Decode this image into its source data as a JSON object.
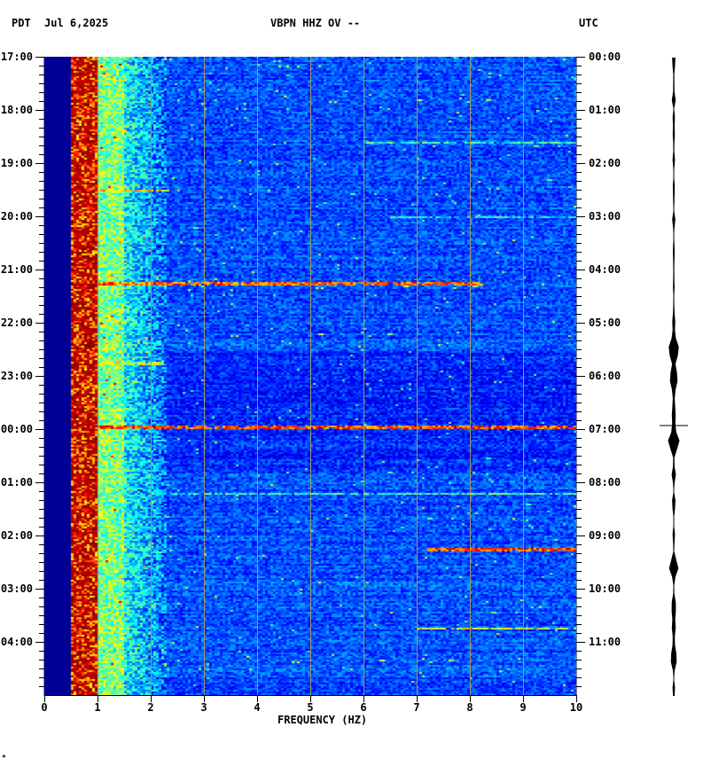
{
  "header": {
    "left_tz": "PDT",
    "date": "Jul 6,2025",
    "station": "VBPN HHZ OV --",
    "right_tz": "UTC"
  },
  "footer_mark": "*",
  "chart_data": {
    "type": "heatmap",
    "title": "VBPN HHZ OV --",
    "xlabel": "FREQUENCY (HZ)",
    "xlim": [
      0,
      10
    ],
    "x_ticks": [
      "0",
      "1",
      "2",
      "3",
      "4",
      "5",
      "6",
      "7",
      "8",
      "9",
      "10"
    ],
    "ylabel_left": "PDT",
    "ylabel_right": "UTC",
    "y_ticks_left": [
      "17:00",
      "18:00",
      "19:00",
      "20:00",
      "21:00",
      "22:00",
      "23:00",
      "00:00",
      "01:00",
      "02:00",
      "03:00",
      "04:00"
    ],
    "y_ticks_right": [
      "00:00",
      "01:00",
      "02:00",
      "03:00",
      "04:00",
      "05:00",
      "06:00",
      "07:00",
      "08:00",
      "09:00",
      "10:00",
      "11:00"
    ],
    "duration_hours": 12,
    "minor_tick_minutes": 10,
    "grid": true,
    "colormap": [
      "#000090",
      "#0000ff",
      "#0080ff",
      "#00ffff",
      "#80ff80",
      "#ffff00",
      "#ff8000",
      "#ff0000",
      "#800000"
    ],
    "band_profile": [
      {
        "fmin": 0.0,
        "fmax": 0.5,
        "level": 0.0
      },
      {
        "fmin": 0.5,
        "fmax": 1.0,
        "level": 0.85
      },
      {
        "fmin": 1.0,
        "fmax": 1.5,
        "level": 0.5
      },
      {
        "fmin": 1.5,
        "fmax": 2.3,
        "level": 0.38
      },
      {
        "fmin": 2.3,
        "fmax": 10.0,
        "level": 0.2
      }
    ],
    "events": [
      {
        "time_hours": 2.5,
        "fmin": 0.5,
        "fmax": 2.5,
        "level": 0.8
      },
      {
        "time_hours": 4.25,
        "fmin": 0.5,
        "fmax": 8.2,
        "level": 0.9
      },
      {
        "time_hours": 5.75,
        "fmin": 0.5,
        "fmax": 2.2,
        "level": 0.7
      },
      {
        "time_hours": 6.95,
        "fmin": 0.5,
        "fmax": 10.0,
        "level": 0.95
      },
      {
        "time_hours": 8.2,
        "fmin": 2.0,
        "fmax": 10.0,
        "level": 0.55
      },
      {
        "time_hours": 9.25,
        "fmin": 7.2,
        "fmax": 10.0,
        "level": 0.92
      },
      {
        "time_hours": 10.73,
        "fmin": 7.0,
        "fmax": 10.0,
        "level": 0.72
      },
      {
        "time_hours": 1.6,
        "fmin": 6.0,
        "fmax": 10.0,
        "level": 0.55
      },
      {
        "time_hours": 3.0,
        "fmin": 6.5,
        "fmax": 10.0,
        "level": 0.5
      }
    ],
    "seismogram_envelope": [
      0.3,
      0.15,
      0.1,
      0.2,
      0.1,
      0.25,
      0.1,
      0.3,
      0.1,
      0.15,
      0.2,
      0.1,
      0.15,
      0.1,
      0.1,
      0.15,
      0.1,
      0.15,
      0.1,
      0.2,
      0.1,
      0.1,
      0.15,
      0.1,
      0.1,
      0.2,
      0.1,
      0.1,
      0.1,
      0.15,
      0.1,
      0.2,
      0.35,
      0.5,
      0.6,
      0.65,
      0.6,
      0.55,
      0.45,
      0.4,
      0.3,
      0.2,
      0.25,
      0.45,
      0.6,
      0.7,
      0.5,
      0.2,
      0.15,
      0.25,
      0.15,
      0.1,
      0.25,
      0.15,
      0.1,
      0.1,
      0.15,
      0.1,
      0.15,
      0.5,
      0.55,
      0.3,
      0.15,
      0.1,
      0.25,
      0.5,
      0.4,
      0.25,
      0.15,
      0.4,
      0.55,
      0.35,
      0.15,
      0.1,
      0.2,
      0.1
    ]
  }
}
